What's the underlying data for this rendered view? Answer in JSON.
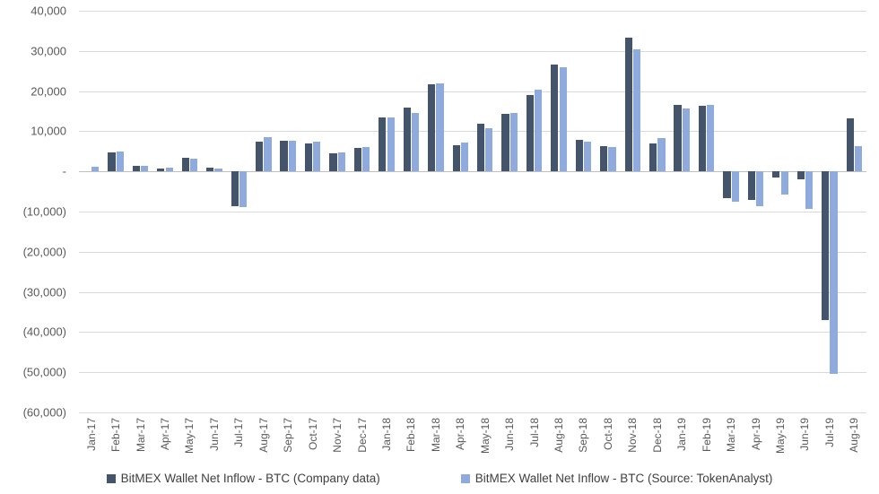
{
  "chart_data": {
    "type": "bar",
    "categories": [
      "Jan-17",
      "Feb-17",
      "Mar-17",
      "Apr-17",
      "May-17",
      "Jun-17",
      "Jul-17",
      "Aug-17",
      "Sep-17",
      "Oct-17",
      "Nov-17",
      "Dec-17",
      "Jan-18",
      "Feb-18",
      "Mar-18",
      "Apr-18",
      "May-18",
      "Jun-18",
      "Jul-18",
      "Aug-18",
      "Sep-18",
      "Oct-18",
      "Nov-18",
      "Dec-18",
      "Jan-19",
      "Feb-19",
      "Mar-19",
      "Apr-19",
      "May-19",
      "Jun-19",
      "Jul-19",
      "Aug-19"
    ],
    "series": [
      {
        "name": "BitMEX Wallet Net Inflow - BTC (Company data)",
        "short": "company",
        "color": "#44546A",
        "values": [
          0,
          4800,
          1300,
          800,
          3500,
          900,
          -8700,
          7300,
          7600,
          7000,
          4400,
          5800,
          13400,
          15900,
          21800,
          6600,
          11800,
          14300,
          19000,
          26500,
          7900,
          6300,
          33200,
          7000,
          16500,
          16400,
          -6600,
          -7000,
          -1500,
          -2000,
          -37000,
          13200
        ]
      },
      {
        "name": "BitMEX Wallet Net Inflow - BTC (Source: TokenAnalyst)",
        "short": "tokenanalyst",
        "color": "#8FAADC",
        "values": [
          1200,
          5000,
          1400,
          900,
          3200,
          700,
          -8900,
          8600,
          7600,
          7300,
          4800,
          6000,
          13500,
          14500,
          21900,
          7100,
          10800,
          14500,
          20300,
          25900,
          7500,
          6000,
          30500,
          8300,
          15600,
          16500,
          -7600,
          -8700,
          -5800,
          -9300,
          -50500,
          6200
        ]
      }
    ],
    "title": "",
    "xlabel": "",
    "ylabel": "",
    "ylim": [
      -60000,
      40000
    ],
    "ytick_step": 10000,
    "y_tick_labels": [
      "40,000",
      "30,000",
      "20,000",
      "10,000",
      "-",
      "(10,000)",
      "(20,000)",
      "(30,000)",
      "(40,000)",
      "(50,000)",
      "(60,000)"
    ],
    "grid": true,
    "legend_position": "bottom"
  },
  "colors": {
    "gridline": "#D9D9D9",
    "axis_text": "#595959",
    "legend_text": "#404040",
    "series_company": "#44546A",
    "series_tokenanalyst": "#8FAADC"
  }
}
